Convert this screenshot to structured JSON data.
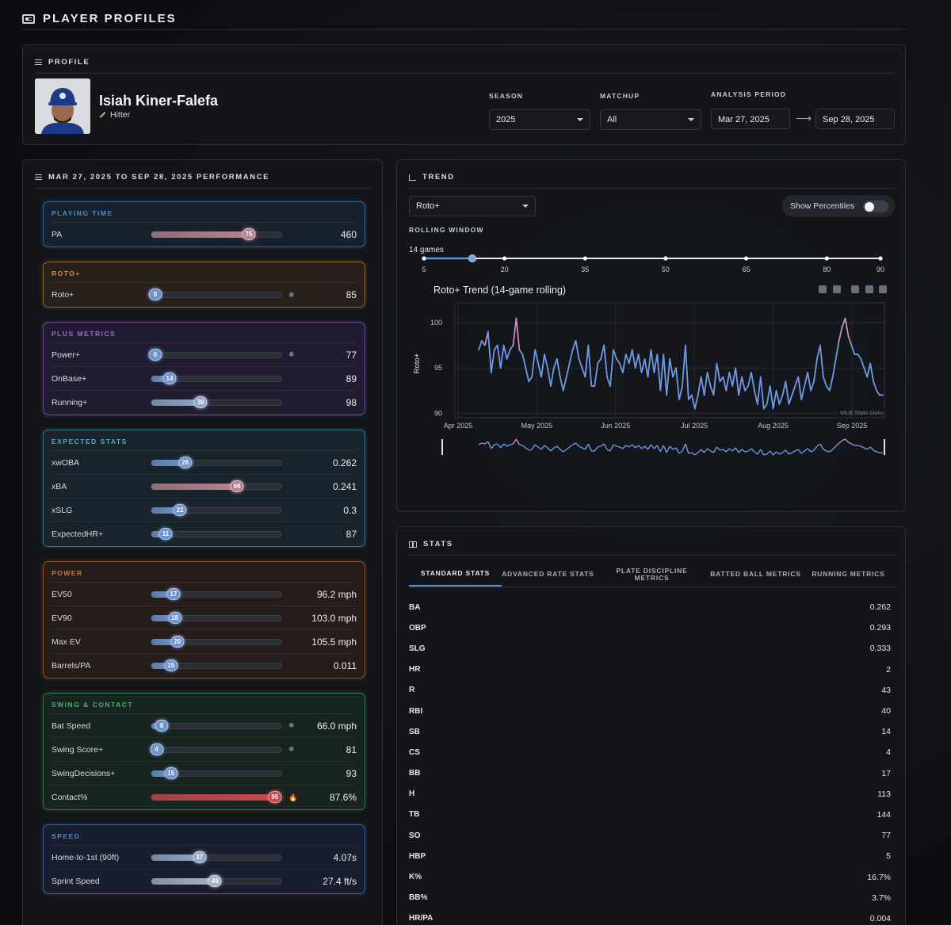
{
  "page": {
    "title": "PLAYER PROFILES"
  },
  "profile": {
    "section_label": "PROFILE",
    "name": "Isiah Kiner-Falefa",
    "role": "Hitter",
    "season_label": "SEASON",
    "season_value": "2025",
    "matchup_label": "MATCHUP",
    "matchup_value": "All",
    "period_label": "ANALYSIS PERIOD",
    "period_start": "Mar 27, 2025",
    "period_end": "Sep 28, 2025"
  },
  "performance": {
    "section_label": "MAR 27, 2025 TO SEP 28, 2025 PERFORMANCE",
    "groups": [
      {
        "title": "PLAYING TIME",
        "metrics": [
          {
            "name": "PA",
            "percentile": 75,
            "value": "460"
          }
        ]
      },
      {
        "title": "ROTO+",
        "metrics": [
          {
            "name": "Roto+",
            "percentile": 0,
            "value": "85",
            "icon": "❄"
          }
        ]
      },
      {
        "title": "PLUS METRICS",
        "metrics": [
          {
            "name": "Power+",
            "percentile": 0,
            "value": "77",
            "icon": "❄"
          },
          {
            "name": "OnBase+",
            "percentile": 14,
            "value": "89"
          },
          {
            "name": "Running+",
            "percentile": 38,
            "value": "98"
          }
        ]
      },
      {
        "title": "EXPECTED STATS",
        "metrics": [
          {
            "name": "xwOBA",
            "percentile": 26,
            "value": "0.262"
          },
          {
            "name": "xBA",
            "percentile": 66,
            "value": "0.241"
          },
          {
            "name": "xSLG",
            "percentile": 22,
            "value": "0.3"
          },
          {
            "name": "ExpectedHR+",
            "percentile": 11,
            "value": "87"
          }
        ]
      },
      {
        "title": "POWER",
        "metrics": [
          {
            "name": "EV50",
            "percentile": 17,
            "value": "96.2 mph"
          },
          {
            "name": "EV90",
            "percentile": 18,
            "value": "103.0 mph"
          },
          {
            "name": "Max EV",
            "percentile": 20,
            "value": "105.5 mph"
          },
          {
            "name": "Barrels/PA",
            "percentile": 15,
            "value": "0.011"
          }
        ]
      },
      {
        "title": "SWING & CONTACT",
        "metrics": [
          {
            "name": "Bat Speed",
            "percentile": 8,
            "value": "66.0 mph",
            "icon": "❄"
          },
          {
            "name": "Swing Score+",
            "percentile": 4,
            "value": "81",
            "icon": "❄"
          },
          {
            "name": "SwingDecisions+",
            "percentile": 15,
            "value": "93"
          },
          {
            "name": "Contact%",
            "percentile": 95,
            "value": "87.6%",
            "icon": "🔥"
          }
        ]
      },
      {
        "title": "SPEED",
        "metrics": [
          {
            "name": "Home-to-1st (90ft)",
            "percentile": 37,
            "value": "4.07s"
          },
          {
            "name": "Sprint Speed",
            "percentile": 49,
            "value": "27.4 ft/s"
          }
        ]
      }
    ]
  },
  "trend": {
    "section_label": "TREND",
    "metric_select": "Roto+",
    "toggle_label": "Show Percentiles",
    "rolling_label": "ROLLING WINDOW",
    "rolling_value_label": "14 games",
    "rolling_value": 14,
    "rolling_ticks": [
      "5",
      "20",
      "35",
      "50",
      "65",
      "80",
      "90"
    ]
  },
  "chart_data": {
    "type": "line",
    "title": "Roto+ Trend (14-game rolling)",
    "xlabel": "",
    "ylabel": "Roto+",
    "ylim": [
      89.5,
      101.5
    ],
    "yticks": [
      "90",
      "95",
      "100"
    ],
    "xticks": [
      "Apr 2025",
      "May 2025",
      "Jun 2025",
      "Jul 2025",
      "Aug 2025",
      "Sep 2025"
    ],
    "watermark": "MLB Stats Guru",
    "series": [
      {
        "name": "Roto+",
        "values": [
          97,
          98,
          97.5,
          99,
          94.5,
          97,
          97.5,
          95,
          97.5,
          96,
          97,
          97.5,
          100.5,
          97,
          96.5,
          95,
          93.5,
          94,
          97,
          95.5,
          94,
          96.5,
          95,
          93,
          95,
          96,
          94,
          92.5,
          94,
          95.5,
          97,
          98,
          96,
          95,
          94,
          97.5,
          93,
          93,
          95.5,
          96,
          97.5,
          94,
          93,
          97,
          96,
          95.5,
          94.5,
          96.5,
          95.5,
          97,
          95,
          96.5,
          94.5,
          96,
          94,
          97,
          94.5,
          96.5,
          92.5,
          96.5,
          92,
          96,
          94,
          95,
          91.5,
          93,
          97.5,
          91.5,
          92,
          90.5,
          92,
          94,
          92,
          94.5,
          93,
          92,
          95.5,
          93.5,
          94,
          92.5,
          94.5,
          93,
          95,
          92,
          94,
          92.5,
          93,
          94.5,
          92.5,
          91,
          94,
          90.5,
          91,
          93,
          90.5,
          92.5,
          91,
          92,
          93.5,
          91,
          92,
          93,
          94,
          91.5,
          93,
          94.5,
          92.5,
          93.5,
          96,
          97.5,
          94,
          93,
          92.5,
          94,
          96,
          98,
          99.5,
          100.5,
          98.5,
          97.5,
          96.5,
          96.5,
          96,
          95,
          94,
          95.5,
          93.5,
          92.5,
          92,
          92
        ]
      }
    ]
  },
  "stats": {
    "section_label": "STATS",
    "tabs": [
      "STANDARD STATS",
      "ADVANCED RATE STATS",
      "PLATE DISCIPLINE METRICS",
      "BATTED BALL METRICS",
      "RUNNING METRICS"
    ],
    "rows": [
      {
        "name": "BA",
        "value": "0.262"
      },
      {
        "name": "OBP",
        "value": "0.293"
      },
      {
        "name": "SLG",
        "value": "0.333"
      },
      {
        "name": "HR",
        "value": "2"
      },
      {
        "name": "R",
        "value": "43"
      },
      {
        "name": "RBI",
        "value": "40"
      },
      {
        "name": "SB",
        "value": "14"
      },
      {
        "name": "CS",
        "value": "4"
      },
      {
        "name": "BB",
        "value": "17"
      },
      {
        "name": "H",
        "value": "113"
      },
      {
        "name": "TB",
        "value": "144"
      },
      {
        "name": "SO",
        "value": "77"
      },
      {
        "name": "HBP",
        "value": "5"
      },
      {
        "name": "K%",
        "value": "16.7%"
      },
      {
        "name": "BB%",
        "value": "3.7%"
      },
      {
        "name": "HR/PA",
        "value": "0.004"
      }
    ]
  },
  "colors": {
    "accent": "#5b8fd6",
    "playing_time": "#4d8ec9",
    "roto": "#d8913a",
    "plus": "#9a6ad8",
    "expected": "#55a7c9",
    "power": "#d07a3a",
    "swing": "#4fae72",
    "speed": "#5a86d0",
    "line_blue": "#6f9ae6",
    "line_pink": "#c48fb8"
  }
}
